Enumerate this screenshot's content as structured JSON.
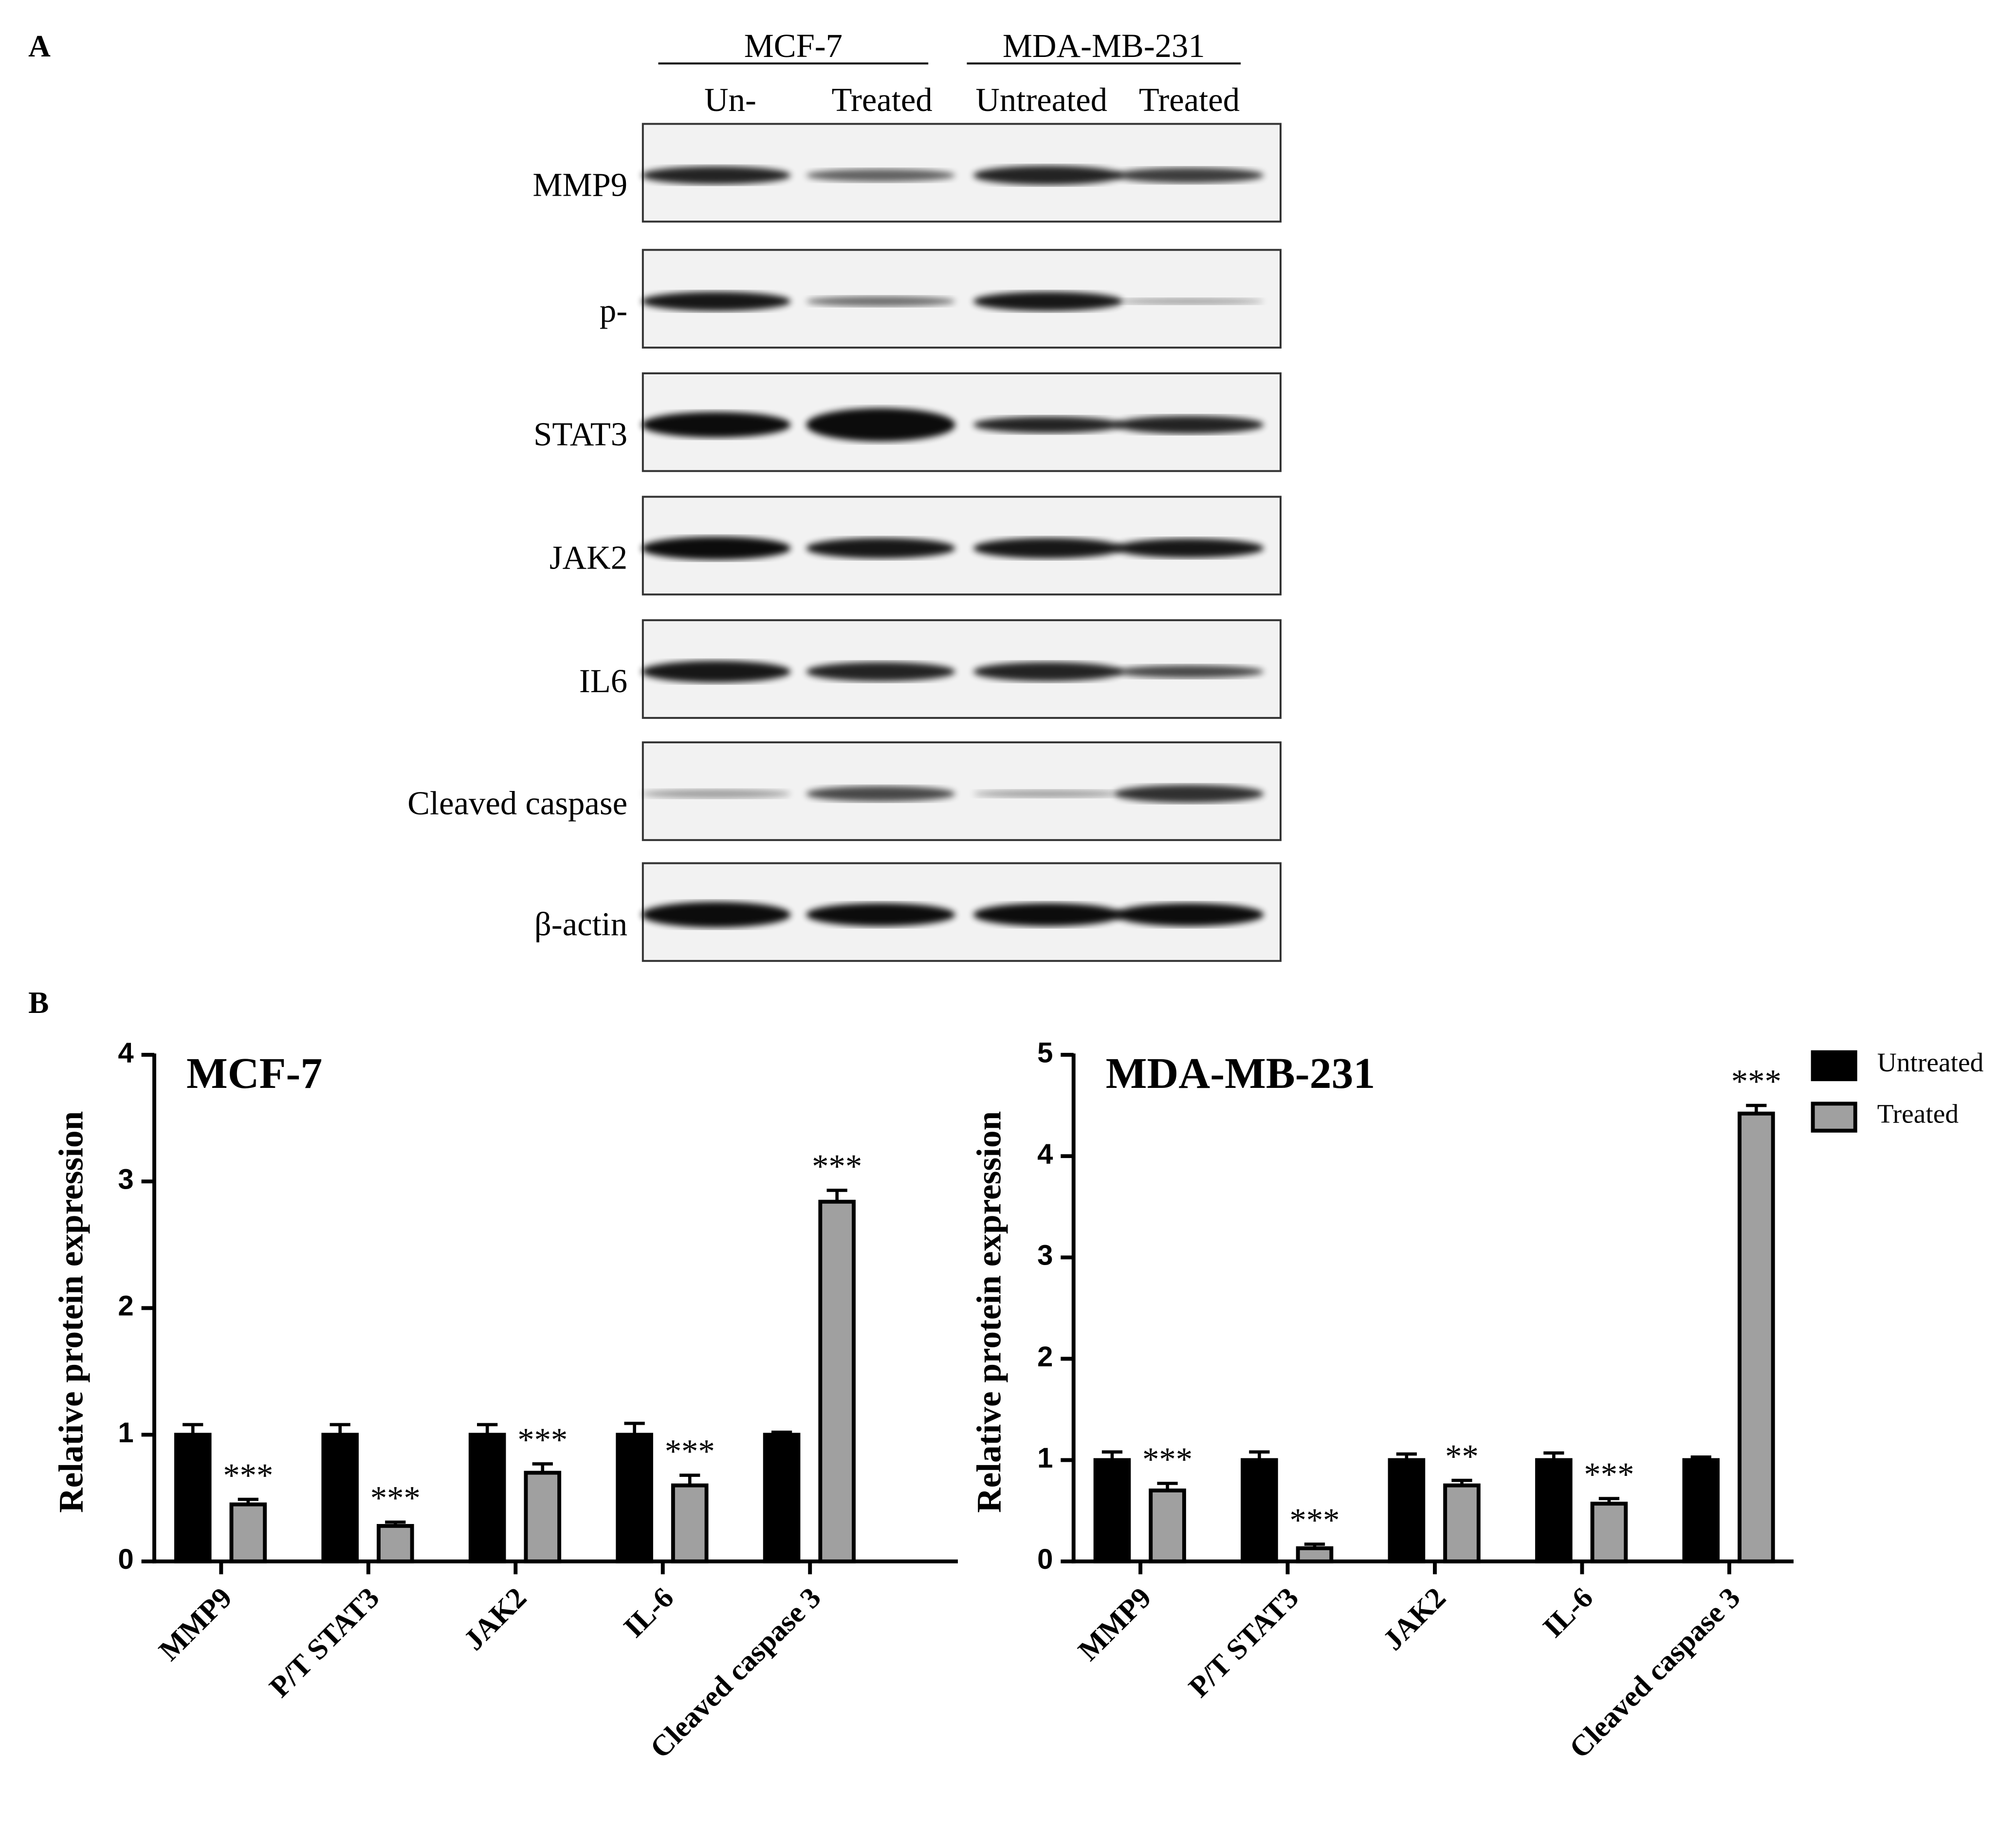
{
  "panel_a": {
    "label": "A",
    "groups": [
      "MCF-7",
      "MDA-MB-231"
    ],
    "lanes": [
      "Un-",
      "Treated",
      "Untreated",
      "Treated"
    ],
    "rows": [
      "MMP9",
      "p-",
      "STAT3",
      "JAK2",
      "IL6",
      "Cleaved caspase",
      "β-actin"
    ]
  },
  "panel_b": {
    "label": "B"
  },
  "chart_data": [
    {
      "type": "bar",
      "title": "MCF-7",
      "y_label": "Relative protein expression",
      "categories": [
        "MMP9",
        "P/T STAT3",
        "JAK2",
        "IL-6",
        "Cleaved caspase 3"
      ],
      "series": [
        {
          "color": "#000000",
          "values": [
            1,
            1,
            1,
            1,
            1
          ],
          "errors": [
            0.08,
            0.08,
            0.08,
            0.09,
            0.02
          ]
        },
        {
          "color": "#a0a0a0",
          "values": [
            0.45,
            0.28,
            0.7,
            0.6,
            2.84
          ],
          "errors": [
            0.04,
            0.03,
            0.07,
            0.08,
            0.09
          ],
          "annotations": [
            "***",
            "***",
            "***",
            "***",
            "***"
          ]
        }
      ],
      "ylim": [
        0,
        4
      ],
      "yticks": [
        0,
        1,
        2,
        3,
        4
      ],
      "legend": false
    },
    {
      "type": "bar",
      "title": "MDA-MB-231",
      "y_label": "Relative protein expression",
      "categories": [
        "MMP9",
        "P/T STAT3",
        "JAK2",
        "IL-6",
        "Cleaved caspase 3"
      ],
      "series": [
        {
          "name": "Untreated",
          "color": "#000000",
          "values": [
            1,
            1,
            1,
            1,
            1
          ],
          "errors": [
            0.08,
            0.08,
            0.06,
            0.07,
            0.03
          ]
        },
        {
          "name": "Treated",
          "color": "#a0a0a0",
          "values": [
            0.7,
            0.13,
            0.75,
            0.57,
            4.42
          ],
          "errors": [
            0.07,
            0.04,
            0.05,
            0.05,
            0.08
          ],
          "annotations": [
            "***",
            "***",
            "**",
            "***",
            "***"
          ]
        }
      ],
      "ylim": [
        0,
        5
      ],
      "yticks": [
        0,
        1,
        2,
        3,
        4,
        5
      ],
      "legend": "top-right"
    }
  ]
}
